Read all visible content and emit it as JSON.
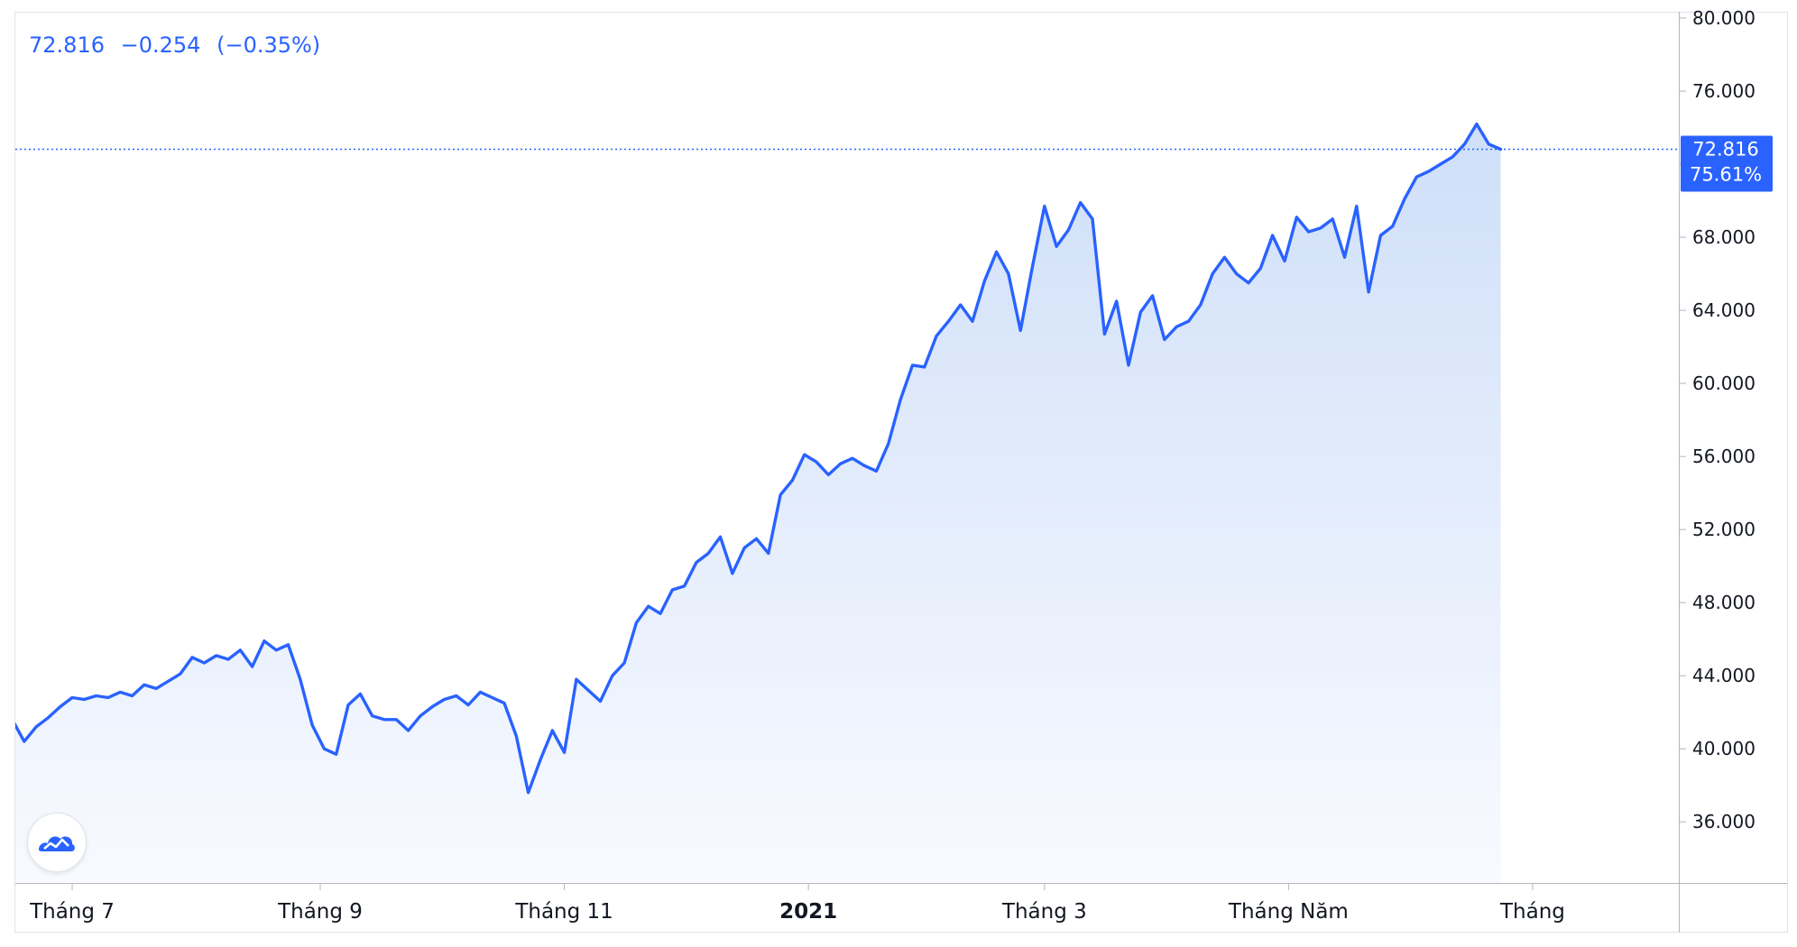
{
  "legend": {
    "last": "72.816",
    "change": "−0.254",
    "change_pct": "(−0.35%)"
  },
  "price_badge": {
    "value": "72.816",
    "pct": "75.61%"
  },
  "colors": {
    "line": "#2962ff",
    "badge": "#2962ff",
    "fill_top": "#cfdff8",
    "fill_bottom": "#f8faff"
  },
  "logo": {
    "icon": "tradingview-logo-icon"
  },
  "chart_data": {
    "type": "area",
    "title": "",
    "xlabel": "",
    "ylabel": "",
    "ylim": [
      33000,
      80000
    ],
    "y_axis_side": "right",
    "y_ticks": [
      36000,
      40000,
      44000,
      48000,
      52000,
      56000,
      60000,
      64000,
      68000,
      72000,
      76000,
      80000
    ],
    "y_tick_labels": [
      "36.000",
      "40.000",
      "44.000",
      "48.000",
      "52.000",
      "56.000",
      "60.000",
      "64.000",
      "68.000",
      "72.000",
      "76.000",
      "80.000"
    ],
    "x_axis_labels": [
      {
        "label": "Tháng 7",
        "date": "2020-07-01",
        "bold": false
      },
      {
        "label": "Tháng 9",
        "date": "2020-09-01",
        "bold": false
      },
      {
        "label": "Tháng 11",
        "date": "2020-11-01",
        "bold": false
      },
      {
        "label": "2021",
        "date": "2021-01-01",
        "bold": true
      },
      {
        "label": "Tháng 3",
        "date": "2021-03-01",
        "bold": false
      },
      {
        "label": "Tháng Năm",
        "date": "2021-05-01",
        "bold": false
      },
      {
        "label": "Tháng",
        "date": "2021-07-01",
        "bold": false
      }
    ],
    "last_value": 72816,
    "series": [
      {
        "x": [
          "2020-06-10",
          "2020-06-13",
          "2020-06-16",
          "2020-06-19",
          "2020-06-22",
          "2020-06-25",
          "2020-06-28",
          "2020-07-01",
          "2020-07-04",
          "2020-07-07",
          "2020-07-10",
          "2020-07-13",
          "2020-07-16",
          "2020-07-19",
          "2020-07-22",
          "2020-07-25",
          "2020-07-28",
          "2020-07-31",
          "2020-08-03",
          "2020-08-06",
          "2020-08-09",
          "2020-08-12",
          "2020-08-15",
          "2020-08-18",
          "2020-08-21",
          "2020-08-24",
          "2020-08-27",
          "2020-08-30",
          "2020-09-02",
          "2020-09-05",
          "2020-09-08",
          "2020-09-11",
          "2020-09-14",
          "2020-09-17",
          "2020-09-20",
          "2020-09-23",
          "2020-09-26",
          "2020-09-29",
          "2020-10-02",
          "2020-10-05",
          "2020-10-08",
          "2020-10-11",
          "2020-10-14",
          "2020-10-17",
          "2020-10-20",
          "2020-10-23",
          "2020-10-26",
          "2020-10-29",
          "2020-11-01",
          "2020-11-04",
          "2020-11-07",
          "2020-11-10",
          "2020-11-13",
          "2020-11-16",
          "2020-11-19",
          "2020-11-22",
          "2020-11-25",
          "2020-11-28",
          "2020-12-01",
          "2020-12-04",
          "2020-12-07",
          "2020-12-10",
          "2020-12-13",
          "2020-12-16",
          "2020-12-19",
          "2020-12-22",
          "2020-12-25",
          "2020-12-28",
          "2020-12-31",
          "2021-01-03",
          "2021-01-06",
          "2021-01-09",
          "2021-01-12",
          "2021-01-15",
          "2021-01-18",
          "2021-01-21",
          "2021-01-24",
          "2021-01-27",
          "2021-01-30",
          "2021-02-02",
          "2021-02-05",
          "2021-02-08",
          "2021-02-11",
          "2021-02-14",
          "2021-02-17",
          "2021-02-20",
          "2021-02-23",
          "2021-02-26",
          "2021-03-01",
          "2021-03-04",
          "2021-03-07",
          "2021-03-10",
          "2021-03-13",
          "2021-03-16",
          "2021-03-19",
          "2021-03-22",
          "2021-03-25",
          "2021-03-28",
          "2021-03-31",
          "2021-04-03",
          "2021-04-06",
          "2021-04-09",
          "2021-04-12",
          "2021-04-15",
          "2021-04-18",
          "2021-04-21",
          "2021-04-24",
          "2021-04-27",
          "2021-04-30",
          "2021-05-03",
          "2021-05-06",
          "2021-05-09",
          "2021-05-12",
          "2021-05-15",
          "2021-05-18",
          "2021-05-21",
          "2021-05-24",
          "2021-05-27",
          "2021-05-30",
          "2021-06-02",
          "2021-06-05",
          "2021-06-08",
          "2021-06-11",
          "2021-06-14",
          "2021-06-17",
          "2021-06-20",
          "2021-06-23"
        ],
        "values": [
          41600,
          42200,
          41600,
          40400,
          41200,
          41700,
          42300,
          42800,
          42700,
          42900,
          42800,
          43100,
          42900,
          43500,
          43300,
          43700,
          44100,
          45000,
          44700,
          45100,
          44900,
          45400,
          44500,
          45900,
          45400,
          45700,
          43800,
          41300,
          40000,
          39700,
          42400,
          43000,
          41800,
          41600,
          41600,
          41000,
          41800,
          42300,
          42700,
          42900,
          42400,
          43100,
          42800,
          42500,
          40700,
          37600,
          39400,
          41000,
          39800,
          43800,
          43200,
          42600,
          44000,
          44700,
          46900,
          47800,
          47400,
          48700,
          48900,
          50200,
          50700,
          51600,
          49600,
          51000,
          51500,
          50700,
          53900,
          54700,
          56100,
          55700,
          55000,
          55600,
          55900,
          55500,
          55200,
          56700,
          59100,
          61000,
          60900,
          62600,
          63400,
          64300,
          63400,
          65600,
          67200,
          66000,
          62900,
          66400,
          69700,
          67500,
          68400,
          69900,
          69000,
          62700,
          64500,
          61000,
          63900,
          64800,
          62400,
          63100,
          63400,
          64300,
          66000,
          66900,
          66000,
          65500,
          66300,
          68100,
          66700,
          69100,
          68300,
          68500,
          69000,
          66900,
          69700,
          65000,
          68100,
          68600,
          70100,
          71300,
          71600,
          72000,
          72400,
          73100,
          74200,
          73100,
          72816
        ]
      }
    ]
  }
}
